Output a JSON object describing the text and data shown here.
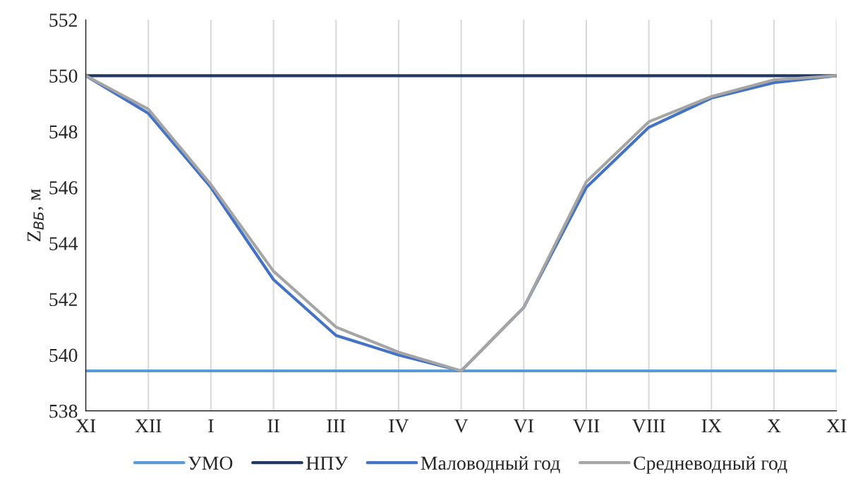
{
  "chart_data": {
    "type": "line",
    "ylabel": "Z$_{ВБ}$, м",
    "categories": [
      "XI",
      "XII",
      "I",
      "II",
      "III",
      "IV",
      "V",
      "VI",
      "VII",
      "VIII",
      "IX",
      "X",
      "XI"
    ],
    "series": [
      {
        "name": "УМО",
        "color": "#5b9bd5",
        "values": [
          539.43,
          539.43,
          539.43,
          539.43,
          539.43,
          539.43,
          539.43,
          539.43,
          539.43,
          539.43,
          539.43,
          539.43,
          539.43
        ]
      },
      {
        "name": "НПУ",
        "color": "#203864",
        "values": [
          550,
          550,
          550,
          550,
          550,
          550,
          550,
          550,
          550,
          550,
          550,
          550,
          550
        ]
      },
      {
        "name": "Маловодный год",
        "color": "#4472c4",
        "values": [
          550,
          548.65,
          546.0,
          542.7,
          540.7,
          540.0,
          539.43,
          541.7,
          546.0,
          548.15,
          549.2,
          549.75,
          550
        ]
      },
      {
        "name": "Средневодный год",
        "color": "#a5a5a5",
        "values": [
          550,
          548.8,
          546.1,
          543.0,
          541.0,
          540.1,
          539.43,
          541.7,
          546.2,
          548.35,
          549.25,
          549.85,
          550
        ]
      }
    ],
    "ylim": [
      538,
      552
    ],
    "yticks": [
      538,
      540,
      542,
      544,
      546,
      548,
      550,
      552
    ],
    "grid": "x",
    "legend": "bottom",
    "marker": "none",
    "line_style": "solid"
  }
}
